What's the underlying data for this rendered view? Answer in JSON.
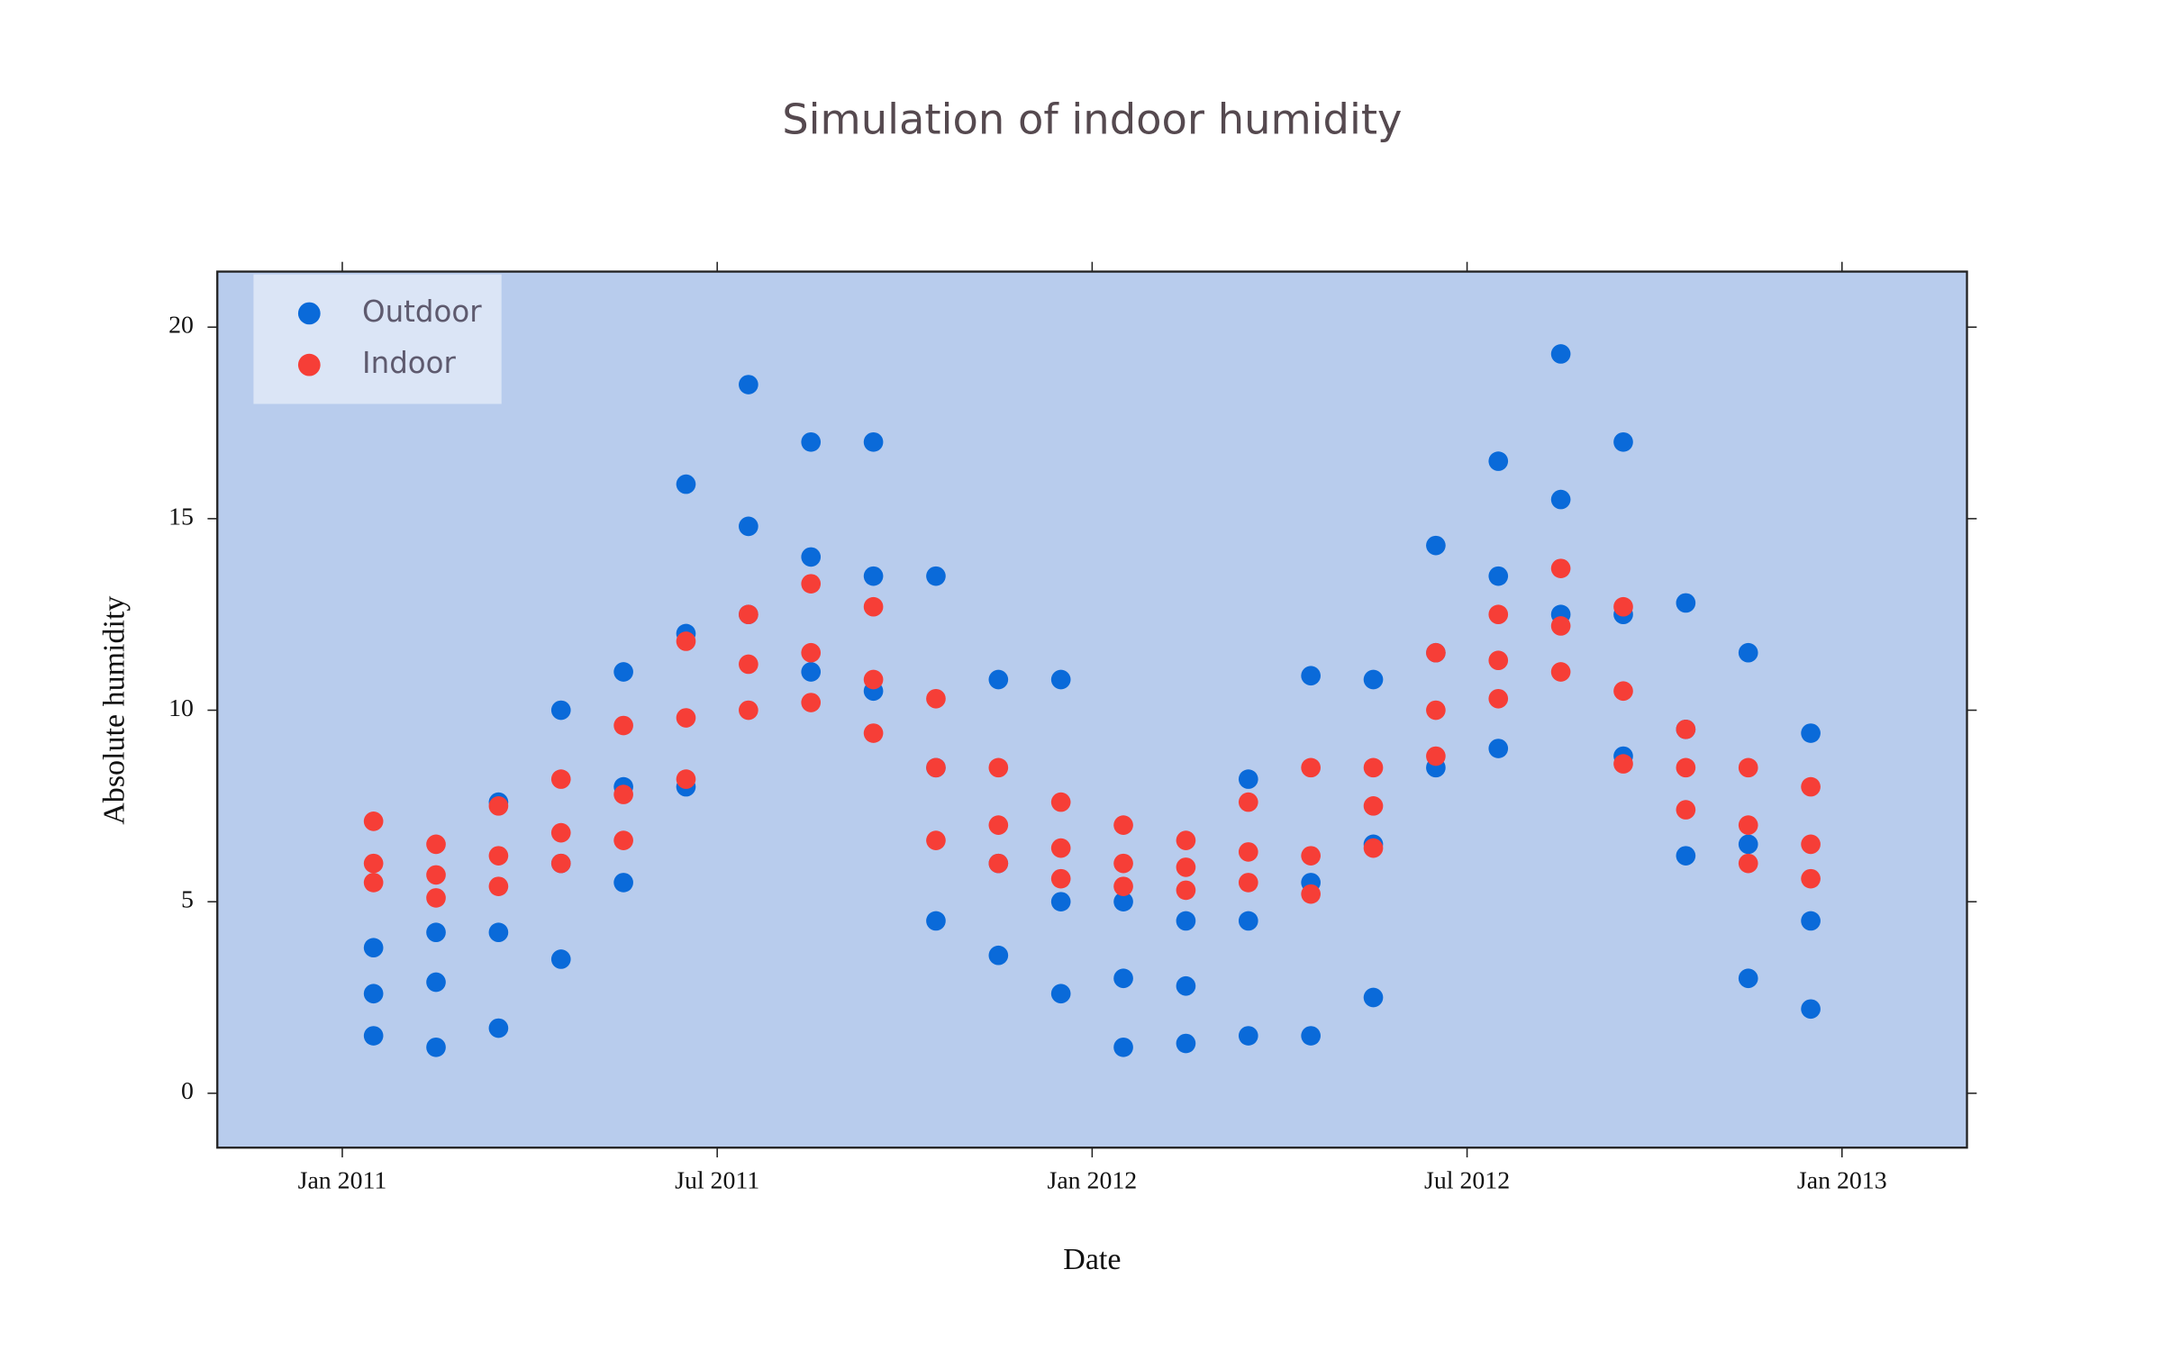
{
  "chart_data": {
    "type": "scatter",
    "title": "Simulation of indoor humidity",
    "x_label": "Date",
    "y_label": "Absolute humidity",
    "x": [
      "2011-01",
      "2011-01",
      "2011-01",
      "2011-02",
      "2011-02",
      "2011-02",
      "2011-03",
      "2011-03",
      "2011-03",
      "2011-04",
      "2011-04",
      "2011-04",
      "2011-05",
      "2011-05",
      "2011-05",
      "2011-06",
      "2011-06",
      "2011-06",
      "2011-07",
      "2011-07",
      "2011-07",
      "2011-08",
      "2011-08",
      "2011-08",
      "2011-09",
      "2011-09",
      "2011-09",
      "2011-10",
      "2011-10",
      "2011-10",
      "2011-11",
      "2011-11",
      "2011-11",
      "2011-12",
      "2011-12",
      "2011-12",
      "2012-01",
      "2012-01",
      "2012-01",
      "2012-02",
      "2012-02",
      "2012-02",
      "2012-03",
      "2012-03",
      "2012-03",
      "2012-04",
      "2012-04",
      "2012-04",
      "2012-05",
      "2012-05",
      "2012-05",
      "2012-06",
      "2012-06",
      "2012-06",
      "2012-07",
      "2012-07",
      "2012-07",
      "2012-08",
      "2012-08",
      "2012-08",
      "2012-09",
      "2012-09",
      "2012-09",
      "2012-10",
      "2012-10",
      "2012-10",
      "2012-11",
      "2012-11",
      "2012-11",
      "2012-12",
      "2012-12",
      "2012-12"
    ],
    "series": [
      {
        "name": "Outdoor",
        "color": "#0a6ad9",
        "values": [
          1.5,
          2.6,
          3.8,
          1.2,
          2.9,
          4.2,
          1.7,
          4.2,
          7.6,
          3.5,
          6,
          10,
          5.5,
          8,
          11,
          8,
          12,
          15.9,
          12.5,
          14.8,
          18.5,
          11,
          14,
          17,
          10.5,
          13.5,
          17,
          4.5,
          8.5,
          13.5,
          3.6,
          6,
          10.8,
          2.6,
          5,
          10.8,
          1.2,
          3,
          5,
          1.3,
          2.8,
          4.5,
          1.5,
          4.5,
          8.2,
          1.5,
          5.5,
          10.9,
          2.5,
          6.5,
          10.8,
          8.5,
          11.5,
          14.3,
          9,
          13.5,
          16.5,
          12.5,
          15.5,
          19.3,
          8.8,
          12.5,
          17,
          6.2,
          9.5,
          12.8,
          3,
          6.5,
          11.5,
          2.2,
          4.5,
          9.4
        ]
      },
      {
        "name": "Indoor",
        "color": "#f63e37",
        "values": [
          5.5,
          6,
          7.1,
          5.1,
          5.7,
          6.5,
          5.4,
          6.2,
          7.5,
          6,
          6.8,
          8.2,
          6.6,
          7.8,
          9.6,
          8.2,
          9.8,
          11.8,
          10,
          11.2,
          12.5,
          10.2,
          11.5,
          13.3,
          9.4,
          10.8,
          12.7,
          6.6,
          8.5,
          10.3,
          6,
          7,
          8.5,
          5.6,
          6.4,
          7.6,
          5.4,
          6,
          7,
          5.3,
          5.9,
          6.6,
          5.5,
          6.3,
          7.6,
          5.2,
          6.2,
          8.5,
          6.4,
          7.5,
          8.5,
          8.8,
          10,
          11.5,
          10.3,
          11.3,
          12.5,
          11,
          12.2,
          13.7,
          8.6,
          10.5,
          12.7,
          7.4,
          8.5,
          9.5,
          6,
          7,
          8.5,
          5.6,
          6.5,
          8
        ]
      }
    ],
    "xlim": [
      "2010-11",
      "2013-03"
    ],
    "xticks": [
      {
        "value": "2011-01",
        "label": "Jan 2011"
      },
      {
        "value": "2011-07",
        "label": "Jul 2011"
      },
      {
        "value": "2012-01",
        "label": "Jan 2012"
      },
      {
        "value": "2012-07",
        "label": "Jul 2012"
      },
      {
        "value": "2013-01",
        "label": "Jan 2013"
      }
    ],
    "ylim": [
      -1.42,
      21.45
    ],
    "yticks": [
      0,
      5,
      10,
      15,
      20
    ],
    "legend": "top-left",
    "background": "#b8cced"
  }
}
